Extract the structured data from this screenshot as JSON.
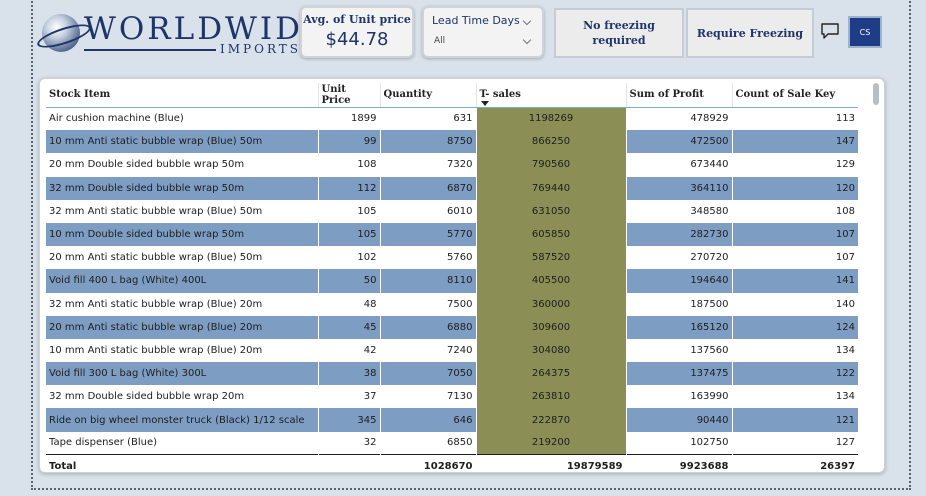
{
  "header": {
    "logo_top": "WORLDWIDE",
    "logo_bottom": "IMPORTS"
  },
  "kpi": {
    "title": "Avg. of Unit price",
    "value": "$44.78"
  },
  "slicer": {
    "title": "Lead Time Days",
    "value": "All"
  },
  "buttons": {
    "no_freezing": "No freezing required",
    "require_freezing": "Require Freezing"
  },
  "user": {
    "initials": "CS"
  },
  "icons": {
    "comment": "comment-icon",
    "chevron": "chevron-down-icon",
    "sort": "sort-desc-icon"
  },
  "colors": {
    "brand": "#1f3469",
    "row_alt": "#7e9dc3",
    "sales_highlight": "#8b8f56",
    "background": "#d9e1ea"
  },
  "table": {
    "columns": [
      "Stock Item",
      "Unit Price",
      "Quantity",
      "T- sales",
      "Sum of Profit",
      "Count of Sale Key"
    ],
    "sorted_column": "T- sales",
    "rows": [
      [
        "Air cushion machine (Blue)",
        "1899",
        "631",
        "1198269",
        "478929",
        "113"
      ],
      [
        "10 mm Anti static bubble wrap (Blue) 50m",
        "99",
        "8750",
        "866250",
        "472500",
        "147"
      ],
      [
        "20 mm Double sided bubble wrap 50m",
        "108",
        "7320",
        "790560",
        "673440",
        "129"
      ],
      [
        "32 mm Double sided bubble wrap 50m",
        "112",
        "6870",
        "769440",
        "364110",
        "120"
      ],
      [
        "32 mm Anti static bubble wrap (Blue) 50m",
        "105",
        "6010",
        "631050",
        "348580",
        "108"
      ],
      [
        "10 mm Double sided bubble wrap 50m",
        "105",
        "5770",
        "605850",
        "282730",
        "107"
      ],
      [
        "20 mm Anti static bubble wrap (Blue) 50m",
        "102",
        "5760",
        "587520",
        "270720",
        "107"
      ],
      [
        "Void fill 400 L bag (White) 400L",
        "50",
        "8110",
        "405500",
        "194640",
        "141"
      ],
      [
        "32 mm Anti static bubble wrap (Blue) 20m",
        "48",
        "7500",
        "360000",
        "187500",
        "140"
      ],
      [
        "20 mm Anti static bubble wrap (Blue) 20m",
        "45",
        "6880",
        "309600",
        "165120",
        "124"
      ],
      [
        "10 mm Anti static bubble wrap (Blue) 20m",
        "42",
        "7240",
        "304080",
        "137560",
        "134"
      ],
      [
        "Void fill 300 L bag (White) 300L",
        "38",
        "7050",
        "264375",
        "137475",
        "122"
      ],
      [
        "32 mm Double sided bubble wrap 20m",
        "37",
        "7130",
        "263810",
        "163990",
        "134"
      ],
      [
        "Ride on big wheel monster truck (Black) 1/12 scale",
        "345",
        "646",
        "222870",
        "90440",
        "121"
      ],
      [
        "Tape dispenser (Blue)",
        "32",
        "6850",
        "219200",
        "102750",
        "127"
      ]
    ],
    "totals": [
      "Total",
      "",
      "1028670",
      "19879589",
      "9923688",
      "26397"
    ]
  }
}
